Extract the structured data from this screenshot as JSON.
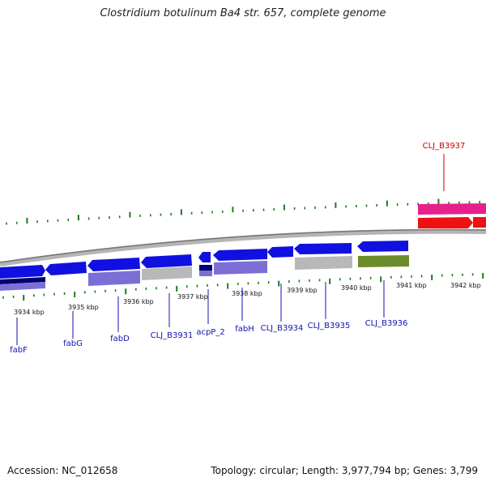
{
  "title": "Clostridium botulinum Ba4 str. 657, complete genome",
  "footer": {
    "accession": "Accession: NC_012658",
    "summary": "Topology: circular; Length: 3,977,794 bp; Genes: 3,799"
  },
  "colors": {
    "cds_forward": "#1010e0",
    "cds_forward_dark": "#000070",
    "cog_purple": "#7b6fd6",
    "cog_gray": "#b8b8b8",
    "cog_olive": "#6b8c2a",
    "rna_pink": "#e8208c",
    "rna_red": "#ee1111",
    "tick_green": "#1f7a1f",
    "backbone": "#888888",
    "label_blue": "#1010b0",
    "label_red": "#cc0000"
  },
  "axis_ticks": [
    {
      "label": "3934 kbp"
    },
    {
      "label": "3935 kbp"
    },
    {
      "label": "3936 kbp"
    },
    {
      "label": "3937 kbp"
    },
    {
      "label": "3938 kbp"
    },
    {
      "label": "3939 kbp"
    },
    {
      "label": "3940 kbp"
    },
    {
      "label": "3941 kbp"
    },
    {
      "label": "3942 kbp"
    }
  ],
  "genes": [
    {
      "name": "fabF"
    },
    {
      "name": "fabG"
    },
    {
      "name": "fabD"
    },
    {
      "name": "CLJ_B3931"
    },
    {
      "name": "acpP_2"
    },
    {
      "name": "fabH"
    },
    {
      "name": "CLJ_B3934"
    },
    {
      "name": "CLJ_B3935"
    },
    {
      "name": "CLJ_B3936"
    },
    {
      "name": "CLJ_B3937"
    }
  ]
}
